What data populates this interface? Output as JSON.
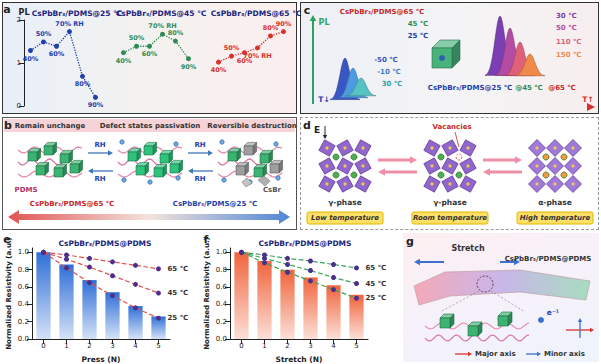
{
  "chart_data": [
    {
      "type": "line",
      "title": "CsPbBr₃/PDMS@25 ℃",
      "y_label": "PL",
      "x": [
        40,
        50,
        60,
        70,
        80,
        90
      ],
      "xlim": [
        35,
        95
      ],
      "ylim": [
        0,
        2
      ],
      "yticks": [
        0,
        1,
        2
      ],
      "tick_labels": "y",
      "grid": false,
      "marker": "circle",
      "line_style": "dotted",
      "color": "#1f3faa",
      "values": [
        1.29,
        1.49,
        1.39,
        1.73,
        0.69,
        0.2
      ],
      "point_labels": [
        "40%",
        "50%",
        "60%",
        "70% RH",
        "80%",
        "90%"
      ]
    },
    {
      "type": "line",
      "title": "CsPbBr₃/PDMS@45 ℃",
      "x": [
        40,
        50,
        60,
        70,
        80,
        90
      ],
      "xlim": [
        35,
        95
      ],
      "ylim": [
        0,
        2
      ],
      "tick_labels": false,
      "grid": false,
      "marker": "circle",
      "line_style": "dotted",
      "color": "#2e8b57",
      "values": [
        1.24,
        1.39,
        1.39,
        1.67,
        1.51,
        1.1
      ],
      "point_labels": [
        "40%",
        "50%",
        "60%",
        "70% RH",
        "80%",
        "90%"
      ]
    },
    {
      "type": "line",
      "title": "CsPbBr₃/PDMS@65 ℃",
      "x": [
        40,
        50,
        60,
        70,
        80,
        90
      ],
      "xlim": [
        35,
        95
      ],
      "ylim": [
        0,
        2
      ],
      "tick_labels": false,
      "grid": false,
      "marker": "circle",
      "line_style": "dotted",
      "color": "#d9302c",
      "values": [
        1.02,
        1.16,
        1.24,
        1.35,
        1.63,
        1.73
      ],
      "point_labels": [
        "40%",
        "50%",
        "60%",
        "70% RH",
        "80%",
        "90%"
      ]
    },
    {
      "type": "bar",
      "title": "CsPbBr₃/PDMS@PDMS",
      "x_label": "Press (N)",
      "y_label": "Normalized Resistivity (a.u.)",
      "categories": [
        "0",
        "1",
        "2",
        "3",
        "4",
        "5"
      ],
      "ylim": [
        0,
        1.05
      ],
      "yticks": [
        {
          "value": 0,
          "label": "0.0"
        },
        0.2,
        0.4,
        0.6,
        0.8,
        {
          "value": 1,
          "label": "1.0"
        }
      ],
      "tick_labels": true,
      "grid": false,
      "series": [
        {
          "type": "bar",
          "color": "#2f6fd6",
          "values": [
            1.0,
            0.86,
            0.68,
            0.54,
            0.38,
            0.26
          ]
        },
        {
          "type": "line",
          "name": "65 ℃",
          "color": "#e0504a",
          "marker": "circle",
          "line_style": "dashed",
          "values": [
            1.0,
            0.97,
            0.93,
            0.89,
            0.85,
            0.81
          ]
        },
        {
          "type": "line",
          "name": "45 ℃",
          "color": "#e0504a",
          "marker": "circle",
          "line_style": "dashed",
          "values": [
            1.0,
            0.92,
            0.83,
            0.73,
            0.63,
            0.53
          ]
        },
        {
          "type": "line",
          "name": "25 ℃",
          "color": "#e0504a",
          "marker": "circle",
          "line_style": "dashed",
          "values": [
            1.0,
            0.82,
            0.65,
            0.5,
            0.36,
            0.24
          ]
        }
      ]
    },
    {
      "type": "bar",
      "title": "CsPbBr₃/PDMS@PDMS",
      "x_label": "Stretch (N)",
      "y_label": "Normalized Resistivity (a.u.)",
      "categories": [
        "0",
        "1",
        "2",
        "3",
        "4",
        "5"
      ],
      "ylim": [
        0,
        1.05
      ],
      "yticks": [
        {
          "value": 0,
          "label": "0.0"
        },
        0.2,
        0.4,
        0.6,
        0.8,
        {
          "value": 1,
          "label": "1.0"
        }
      ],
      "tick_labels": true,
      "grid": false,
      "series": [
        {
          "type": "bar",
          "color": "#f0643c",
          "values": [
            1.0,
            0.9,
            0.8,
            0.71,
            0.62,
            0.51
          ]
        },
        {
          "type": "line",
          "name": "65 ℃",
          "color": "#3aa35f",
          "marker": "circle",
          "line_style": "dashed",
          "values": [
            1.0,
            0.97,
            0.93,
            0.9,
            0.86,
            0.82
          ]
        },
        {
          "type": "line",
          "name": "45 ℃",
          "color": "#3aa35f",
          "marker": "circle",
          "line_style": "dashed",
          "values": [
            1.0,
            0.93,
            0.86,
            0.79,
            0.71,
            0.64
          ]
        },
        {
          "type": "line",
          "name": "25 ℃",
          "color": "#3aa35f",
          "marker": "circle",
          "line_style": "dashed",
          "values": [
            1.0,
            0.88,
            0.77,
            0.67,
            0.57,
            0.47
          ]
        }
      ]
    }
  ],
  "panels": {
    "a": {
      "label": "a"
    },
    "b": {
      "label": "b",
      "states": [
        "Remain unchange",
        "Defect states passivation",
        "Reversible destruction"
      ],
      "matrix": "PDMS",
      "rh_labels": [
        "RH",
        "RH",
        "RH",
        "RH"
      ],
      "product": "CsBr",
      "low_side": "CsPbBr₃/PDMS@65 ℃",
      "high_side": "CsPbBr₃/PDMS@25 ℃"
    },
    "c": {
      "label": "c",
      "y_label": "PL",
      "samples": [
        "CsPbBr₃/PDMS@65 ℃",
        "45 ℃",
        "25 ℃"
      ],
      "low_temperatures": [
        "-50 ℃",
        "-10 ℃",
        "30 ℃"
      ],
      "high_temperatures": [
        "30 ℃",
        "50 ℃",
        "110 ℃",
        "150 ℃"
      ],
      "bottom": [
        "CsPbBr₃/PDMS@25 ℃",
        "@45 ℃",
        "@65 ℃"
      ],
      "t_low": "T↓",
      "t_high": "T↑"
    },
    "d": {
      "label": "d",
      "field": "E",
      "defect": "Vacancies",
      "phases": [
        "γ-phase",
        "γ-phase",
        "α-phase"
      ],
      "temperatures": [
        "Low temperature",
        "Room temperature",
        "High temperature"
      ]
    },
    "e": {
      "label": "e"
    },
    "f": {
      "label": "f"
    },
    "g": {
      "label": "g",
      "action": "Stretch",
      "sample": "CsPbBr₃/PDMS@PDMS",
      "carrier": "e⁻¹",
      "axes_key": [
        "Major axis",
        "Minor axis"
      ]
    }
  }
}
